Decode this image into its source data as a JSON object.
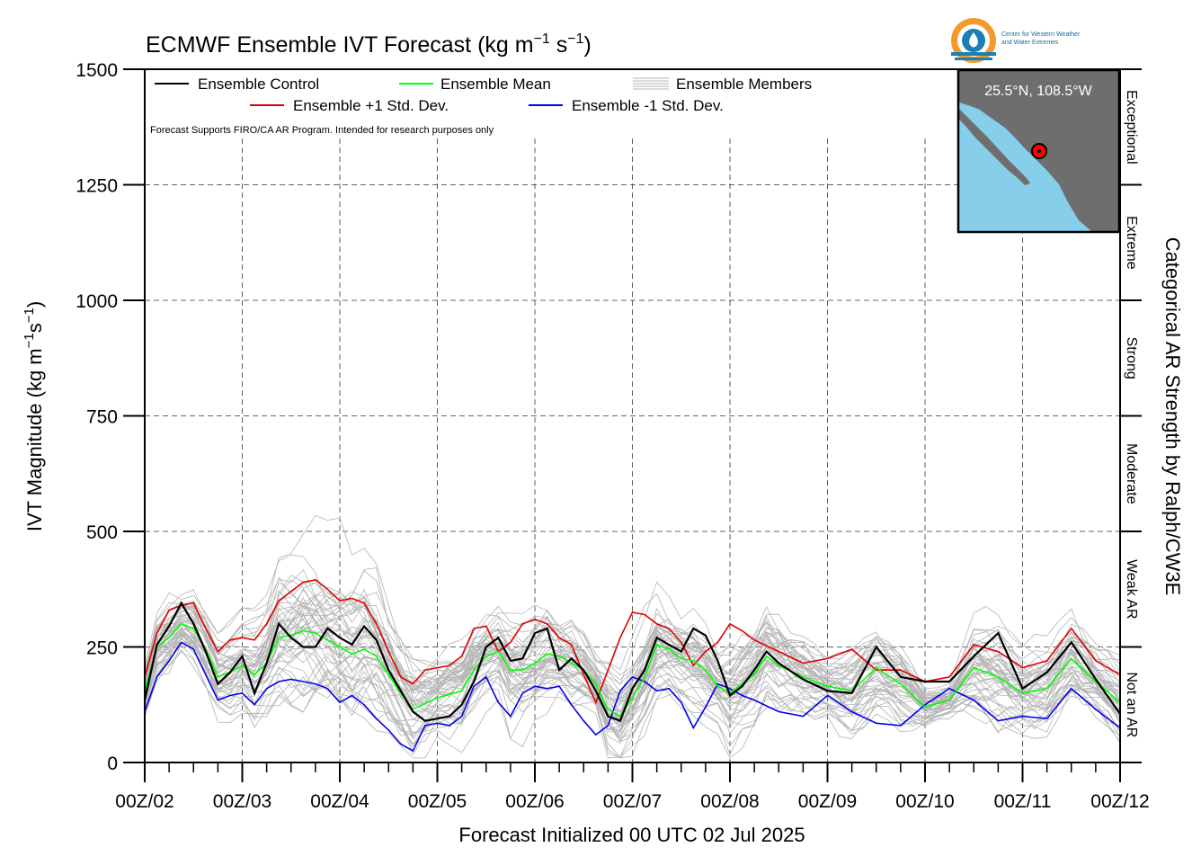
{
  "title_main": "ECMWF Ensemble IVT Forecast (kg m",
  "title_sup1": "−1",
  "title_mid": " s",
  "title_sup2": "−1",
  "title_end": ")",
  "ylabel_main": "IVT Magnitude (kg m",
  "ylabel_sup1": "−1",
  "ylabel_mid": "s",
  "ylabel_sup2": "−1",
  "ylabel_end": ")",
  "xlabel": "Forecast Initialized 00 UTC 02 Jul 2025",
  "right_label": "Categorical AR Strength by Ralph/CW3E",
  "legend": {
    "control": "Ensemble Control",
    "mean": "Ensemble Mean",
    "members": "Ensemble Members",
    "plus": "Ensemble +1 Std. Dev.",
    "minus": "Ensemble -1 Std. Dev."
  },
  "note": "Forecast Supports FIRO/CA AR Program. Intended for research purposes only",
  "logo": {
    "line1": "Center for Western Weather",
    "line2": "and Water Extremes"
  },
  "inset": {
    "location": "25.5°N, 108.5°W",
    "colors": {
      "ocean": "#87ceeb",
      "land": "#6e6e6e",
      "marker": "#ff0000"
    }
  },
  "colors": {
    "control": "#000000",
    "mean": "#00ff00",
    "plus": "#e00000",
    "minus": "#0000ee",
    "members": "#b4b4b4"
  },
  "chart_data": {
    "type": "line",
    "title": "ECMWF Ensemble IVT Forecast (kg m−1 s−1)",
    "xlabel": "Forecast Initialized 00 UTC 02 Jul 2025",
    "ylabel": "IVT Magnitude (kg m−1s−1)",
    "ylim": [
      0,
      1500
    ],
    "yticks": [
      0,
      250,
      500,
      750,
      1000,
      1250,
      1500
    ],
    "xlim": [
      0,
      240
    ],
    "x_unit": "forecast hour",
    "x_tick_labels": [
      "00Z/02",
      "00Z/03",
      "00Z/04",
      "00Z/05",
      "00Z/06",
      "00Z/07",
      "00Z/08",
      "00Z/09",
      "00Z/10",
      "00Z/11",
      "00Z/12"
    ],
    "grid": true,
    "legend_position": "top-left",
    "categories": [
      {
        "label": "Not an AR",
        "range": [
          0,
          250
        ]
      },
      {
        "label": "Weak AR",
        "range": [
          250,
          500
        ]
      },
      {
        "label": "Moderate",
        "range": [
          500,
          750
        ]
      },
      {
        "label": "Strong",
        "range": [
          750,
          1000
        ]
      },
      {
        "label": "Extreme",
        "range": [
          1000,
          1250
        ]
      },
      {
        "label": "Exceptional",
        "range": [
          1250,
          1500
        ]
      }
    ],
    "series": [
      {
        "name": "Ensemble Control",
        "points": [
          [
            0,
            135
          ],
          [
            3,
            255
          ],
          [
            6,
            295
          ],
          [
            9,
            345
          ],
          [
            12,
            300
          ],
          [
            15,
            240
          ],
          [
            18,
            170
          ],
          [
            21,
            195
          ],
          [
            24,
            230
          ],
          [
            27,
            150
          ],
          [
            30,
            215
          ],
          [
            33,
            300
          ],
          [
            36,
            270
          ],
          [
            39,
            250
          ],
          [
            42,
            250
          ],
          [
            45,
            290
          ],
          [
            48,
            270
          ],
          [
            51,
            255
          ],
          [
            54,
            295
          ],
          [
            57,
            265
          ],
          [
            60,
            200
          ],
          [
            66,
            110
          ],
          [
            69,
            90
          ],
          [
            72,
            95
          ],
          [
            75,
            100
          ],
          [
            78,
            125
          ],
          [
            81,
            175
          ],
          [
            84,
            250
          ],
          [
            87,
            270
          ],
          [
            90,
            220
          ],
          [
            93,
            225
          ],
          [
            96,
            280
          ],
          [
            99,
            290
          ],
          [
            102,
            200
          ],
          [
            105,
            225
          ],
          [
            108,
            200
          ],
          [
            111,
            155
          ],
          [
            114,
            100
          ],
          [
            117,
            90
          ],
          [
            120,
            160
          ],
          [
            123,
            200
          ],
          [
            126,
            270
          ],
          [
            129,
            255
          ],
          [
            132,
            240
          ],
          [
            135,
            290
          ],
          [
            138,
            275
          ],
          [
            141,
            220
          ],
          [
            144,
            145
          ],
          [
            147,
            165
          ],
          [
            150,
            200
          ],
          [
            153,
            240
          ],
          [
            156,
            215
          ],
          [
            162,
            180
          ],
          [
            168,
            155
          ],
          [
            174,
            150
          ],
          [
            180,
            250
          ],
          [
            186,
            185
          ],
          [
            192,
            175
          ],
          [
            198,
            175
          ],
          [
            204,
            230
          ],
          [
            210,
            280
          ],
          [
            216,
            160
          ],
          [
            222,
            195
          ],
          [
            228,
            260
          ],
          [
            234,
            180
          ],
          [
            240,
            105
          ]
        ]
      },
      {
        "name": "Ensemble Mean",
        "points": [
          [
            0,
            155
          ],
          [
            3,
            250
          ],
          [
            6,
            270
          ],
          [
            9,
            300
          ],
          [
            12,
            290
          ],
          [
            15,
            245
          ],
          [
            18,
            185
          ],
          [
            21,
            195
          ],
          [
            24,
            210
          ],
          [
            27,
            190
          ],
          [
            30,
            215
          ],
          [
            33,
            270
          ],
          [
            36,
            275
          ],
          [
            39,
            285
          ],
          [
            42,
            280
          ],
          [
            45,
            265
          ],
          [
            48,
            250
          ],
          [
            51,
            235
          ],
          [
            54,
            245
          ],
          [
            57,
            230
          ],
          [
            60,
            190
          ],
          [
            63,
            150
          ],
          [
            66,
            115
          ],
          [
            72,
            140
          ],
          [
            78,
            155
          ],
          [
            81,
            200
          ],
          [
            84,
            230
          ],
          [
            87,
            240
          ],
          [
            90,
            200
          ],
          [
            93,
            200
          ],
          [
            96,
            215
          ],
          [
            99,
            235
          ],
          [
            102,
            230
          ],
          [
            105,
            215
          ],
          [
            108,
            200
          ],
          [
            111,
            170
          ],
          [
            114,
            115
          ],
          [
            117,
            100
          ],
          [
            120,
            140
          ],
          [
            123,
            185
          ],
          [
            126,
            255
          ],
          [
            129,
            245
          ],
          [
            132,
            225
          ],
          [
            135,
            220
          ],
          [
            138,
            200
          ],
          [
            141,
            165
          ],
          [
            144,
            150
          ],
          [
            150,
            190
          ],
          [
            153,
            230
          ],
          [
            156,
            210
          ],
          [
            162,
            185
          ],
          [
            168,
            165
          ],
          [
            174,
            155
          ],
          [
            180,
            205
          ],
          [
            186,
            170
          ],
          [
            192,
            120
          ],
          [
            198,
            135
          ],
          [
            204,
            205
          ],
          [
            210,
            185
          ],
          [
            216,
            150
          ],
          [
            222,
            160
          ],
          [
            228,
            225
          ],
          [
            234,
            175
          ],
          [
            240,
            130
          ]
        ]
      },
      {
        "name": "Ensemble +1 Std. Dev.",
        "points": [
          [
            0,
            185
          ],
          [
            3,
            280
          ],
          [
            6,
            330
          ],
          [
            9,
            340
          ],
          [
            12,
            345
          ],
          [
            15,
            290
          ],
          [
            18,
            240
          ],
          [
            21,
            265
          ],
          [
            24,
            270
          ],
          [
            27,
            265
          ],
          [
            30,
            300
          ],
          [
            33,
            350
          ],
          [
            36,
            370
          ],
          [
            39,
            390
          ],
          [
            42,
            395
          ],
          [
            45,
            375
          ],
          [
            48,
            350
          ],
          [
            51,
            355
          ],
          [
            54,
            345
          ],
          [
            57,
            300
          ],
          [
            60,
            240
          ],
          [
            63,
            185
          ],
          [
            66,
            170
          ],
          [
            69,
            200
          ],
          [
            72,
            205
          ],
          [
            75,
            210
          ],
          [
            78,
            230
          ],
          [
            81,
            290
          ],
          [
            84,
            295
          ],
          [
            87,
            240
          ],
          [
            90,
            260
          ],
          [
            93,
            300
          ],
          [
            96,
            310
          ],
          [
            99,
            300
          ],
          [
            102,
            270
          ],
          [
            105,
            255
          ],
          [
            108,
            190
          ],
          [
            111,
            130
          ],
          [
            114,
            200
          ],
          [
            117,
            270
          ],
          [
            120,
            325
          ],
          [
            123,
            320
          ],
          [
            126,
            300
          ],
          [
            129,
            290
          ],
          [
            132,
            260
          ],
          [
            135,
            210
          ],
          [
            138,
            240
          ],
          [
            141,
            260
          ],
          [
            144,
            300
          ],
          [
            147,
            285
          ],
          [
            150,
            265
          ],
          [
            156,
            240
          ],
          [
            162,
            215
          ],
          [
            168,
            225
          ],
          [
            174,
            245
          ],
          [
            180,
            200
          ],
          [
            186,
            200
          ],
          [
            192,
            175
          ],
          [
            198,
            185
          ],
          [
            204,
            255
          ],
          [
            210,
            240
          ],
          [
            216,
            205
          ],
          [
            222,
            220
          ],
          [
            228,
            290
          ],
          [
            234,
            220
          ],
          [
            240,
            190
          ]
        ]
      },
      {
        "name": "Ensemble -1 Std. Dev.",
        "points": [
          [
            0,
            110
          ],
          [
            3,
            185
          ],
          [
            6,
            220
          ],
          [
            9,
            260
          ],
          [
            12,
            245
          ],
          [
            15,
            190
          ],
          [
            18,
            135
          ],
          [
            21,
            145
          ],
          [
            24,
            150
          ],
          [
            27,
            125
          ],
          [
            30,
            160
          ],
          [
            33,
            175
          ],
          [
            36,
            180
          ],
          [
            39,
            175
          ],
          [
            42,
            170
          ],
          [
            45,
            160
          ],
          [
            48,
            130
          ],
          [
            51,
            145
          ],
          [
            54,
            125
          ],
          [
            57,
            95
          ],
          [
            60,
            70
          ],
          [
            63,
            40
          ],
          [
            66,
            25
          ],
          [
            69,
            80
          ],
          [
            72,
            85
          ],
          [
            75,
            80
          ],
          [
            78,
            100
          ],
          [
            81,
            165
          ],
          [
            84,
            185
          ],
          [
            87,
            130
          ],
          [
            90,
            100
          ],
          [
            93,
            150
          ],
          [
            96,
            165
          ],
          [
            99,
            160
          ],
          [
            102,
            165
          ],
          [
            105,
            125
          ],
          [
            108,
            90
          ],
          [
            111,
            60
          ],
          [
            114,
            80
          ],
          [
            117,
            155
          ],
          [
            120,
            185
          ],
          [
            123,
            175
          ],
          [
            126,
            155
          ],
          [
            129,
            160
          ],
          [
            132,
            130
          ],
          [
            135,
            75
          ],
          [
            138,
            120
          ],
          [
            141,
            170
          ],
          [
            144,
            160
          ],
          [
            147,
            145
          ],
          [
            150,
            135
          ],
          [
            156,
            110
          ],
          [
            162,
            100
          ],
          [
            168,
            145
          ],
          [
            174,
            110
          ],
          [
            180,
            85
          ],
          [
            186,
            80
          ],
          [
            192,
            125
          ],
          [
            198,
            160
          ],
          [
            204,
            135
          ],
          [
            210,
            90
          ],
          [
            216,
            100
          ],
          [
            222,
            95
          ],
          [
            228,
            160
          ],
          [
            234,
            115
          ],
          [
            240,
            75
          ]
        ]
      },
      {
        "name": "Ensemble Members",
        "count": 50,
        "approx_envelope": {
          "min": [
            [
              0,
              50
            ],
            [
              30,
              30
            ],
            [
              60,
              20
            ],
            [
              90,
              30
            ],
            [
              120,
              40
            ],
            [
              150,
              40
            ],
            [
              180,
              40
            ],
            [
              210,
              30
            ],
            [
              240,
              30
            ]
          ],
          "max": [
            [
              0,
              160
            ],
            [
              12,
              360
            ],
            [
              36,
              600
            ],
            [
              60,
              570
            ],
            [
              96,
              390
            ],
            [
              120,
              410
            ],
            [
              150,
              340
            ],
            [
              180,
              320
            ],
            [
              204,
              420
            ],
            [
              240,
              260
            ]
          ]
        }
      }
    ]
  }
}
